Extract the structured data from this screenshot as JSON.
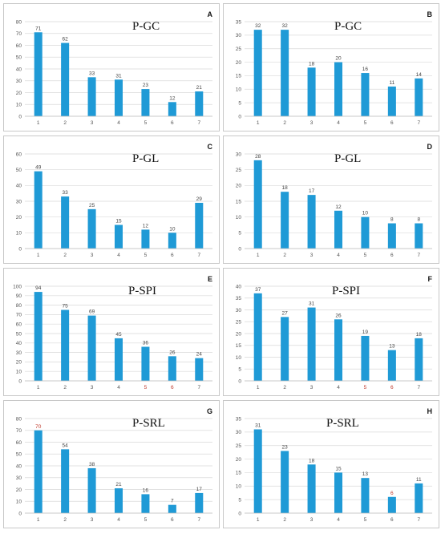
{
  "chart_data": [
    {
      "panel": "A",
      "type": "bar",
      "title": "P-GC",
      "categories": [
        "1",
        "2",
        "3",
        "4",
        "5",
        "6",
        "7"
      ],
      "values": [
        71,
        62,
        33,
        31,
        23,
        12,
        21
      ],
      "ylim": [
        0,
        80
      ],
      "yticks": [
        0,
        10,
        20,
        30,
        40,
        50,
        60,
        70,
        80
      ],
      "grid": true,
      "bar_color": "#1f9ad6",
      "x_label_colors": [
        "#555555",
        "#555555",
        "#555555",
        "#555555",
        "#555555",
        "#555555",
        "#555555"
      ],
      "value_label_colors": [
        "#444444",
        "#444444",
        "#444444",
        "#444444",
        "#444444",
        "#444444",
        "#444444"
      ]
    },
    {
      "panel": "B",
      "type": "bar",
      "title": "P-GC",
      "categories": [
        "1",
        "2",
        "3",
        "4",
        "5",
        "6",
        "7"
      ],
      "values": [
        32,
        32,
        18,
        20,
        16,
        11,
        14
      ],
      "ylim": [
        0,
        35
      ],
      "yticks": [
        0,
        5,
        10,
        15,
        20,
        25,
        30,
        35
      ],
      "grid": true,
      "bar_color": "#1f9ad6",
      "x_label_colors": [
        "#555555",
        "#555555",
        "#555555",
        "#555555",
        "#555555",
        "#555555",
        "#555555"
      ],
      "value_label_colors": [
        "#444444",
        "#444444",
        "#444444",
        "#444444",
        "#444444",
        "#444444",
        "#444444"
      ]
    },
    {
      "panel": "C",
      "type": "bar",
      "title": "P-GL",
      "categories": [
        "1",
        "2",
        "3",
        "4",
        "5",
        "6",
        "7"
      ],
      "values": [
        49,
        33,
        25,
        15,
        12,
        10,
        29
      ],
      "ylim": [
        0,
        60
      ],
      "yticks": [
        0,
        10,
        20,
        30,
        40,
        50,
        60
      ],
      "grid": true,
      "bar_color": "#1f9ad6",
      "x_label_colors": [
        "#555555",
        "#555555",
        "#555555",
        "#555555",
        "#555555",
        "#555555",
        "#555555"
      ],
      "value_label_colors": [
        "#444444",
        "#444444",
        "#444444",
        "#444444",
        "#444444",
        "#444444",
        "#444444"
      ]
    },
    {
      "panel": "D",
      "type": "bar",
      "title": "P-GL",
      "categories": [
        "1",
        "2",
        "3",
        "4",
        "5",
        "6",
        "7"
      ],
      "values": [
        28,
        18,
        17,
        12,
        10,
        8,
        8
      ],
      "ylim": [
        0,
        30
      ],
      "yticks": [
        0,
        5,
        10,
        15,
        20,
        25,
        30
      ],
      "grid": true,
      "bar_color": "#1f9ad6",
      "x_label_colors": [
        "#555555",
        "#555555",
        "#555555",
        "#555555",
        "#555555",
        "#555555",
        "#555555"
      ],
      "value_label_colors": [
        "#444444",
        "#444444",
        "#444444",
        "#444444",
        "#444444",
        "#444444",
        "#444444"
      ]
    },
    {
      "panel": "E",
      "type": "bar",
      "title": "P-SPI",
      "categories": [
        "1",
        "2",
        "3",
        "4",
        "5",
        "6",
        "7"
      ],
      "values": [
        94,
        75,
        69,
        45,
        36,
        26,
        24
      ],
      "ylim": [
        0,
        100
      ],
      "yticks": [
        0,
        10,
        20,
        30,
        40,
        50,
        60,
        70,
        80,
        90,
        100
      ],
      "grid": true,
      "bar_color": "#1f9ad6",
      "x_label_colors": [
        "#555555",
        "#555555",
        "#555555",
        "#555555",
        "#c0392b",
        "#c0392b",
        "#555555"
      ],
      "value_label_colors": [
        "#444444",
        "#444444",
        "#444444",
        "#444444",
        "#444444",
        "#444444",
        "#444444"
      ]
    },
    {
      "panel": "F",
      "type": "bar",
      "title": "P-SPI",
      "categories": [
        "1",
        "2",
        "3",
        "4",
        "5",
        "6",
        "7"
      ],
      "values": [
        37,
        27,
        31,
        26,
        19,
        13,
        18
      ],
      "ylim": [
        0,
        40
      ],
      "yticks": [
        0,
        5,
        10,
        15,
        20,
        25,
        30,
        35,
        40
      ],
      "grid": true,
      "bar_color": "#1f9ad6",
      "x_label_colors": [
        "#555555",
        "#555555",
        "#555555",
        "#555555",
        "#c0392b",
        "#c0392b",
        "#555555"
      ],
      "value_label_colors": [
        "#444444",
        "#444444",
        "#444444",
        "#444444",
        "#444444",
        "#444444",
        "#444444"
      ]
    },
    {
      "panel": "G",
      "type": "bar",
      "title": "P-SRL",
      "categories": [
        "1",
        "2",
        "3",
        "4",
        "5",
        "6",
        "7"
      ],
      "values": [
        70,
        54,
        38,
        21,
        16,
        7,
        17
      ],
      "ylim": [
        0,
        80
      ],
      "yticks": [
        0,
        10,
        20,
        30,
        40,
        50,
        60,
        70,
        80
      ],
      "grid": true,
      "bar_color": "#1f9ad6",
      "x_label_colors": [
        "#555555",
        "#555555",
        "#555555",
        "#555555",
        "#555555",
        "#555555",
        "#555555"
      ],
      "value_label_colors": [
        "#c0392b",
        "#444444",
        "#444444",
        "#444444",
        "#444444",
        "#444444",
        "#444444"
      ]
    },
    {
      "panel": "H",
      "type": "bar",
      "title": "P-SRL",
      "categories": [
        "1",
        "2",
        "3",
        "4",
        "5",
        "6",
        "7"
      ],
      "values": [
        31,
        23,
        18,
        15,
        13,
        6,
        11
      ],
      "ylim": [
        0,
        35
      ],
      "yticks": [
        0,
        5,
        10,
        15,
        20,
        25,
        30,
        35
      ],
      "grid": true,
      "bar_color": "#1f9ad6",
      "x_label_colors": [
        "#555555",
        "#555555",
        "#555555",
        "#555555",
        "#555555",
        "#555555",
        "#555555"
      ],
      "value_label_colors": [
        "#444444",
        "#444444",
        "#444444",
        "#444444",
        "#444444",
        "#c0392b",
        "#444444"
      ]
    }
  ]
}
